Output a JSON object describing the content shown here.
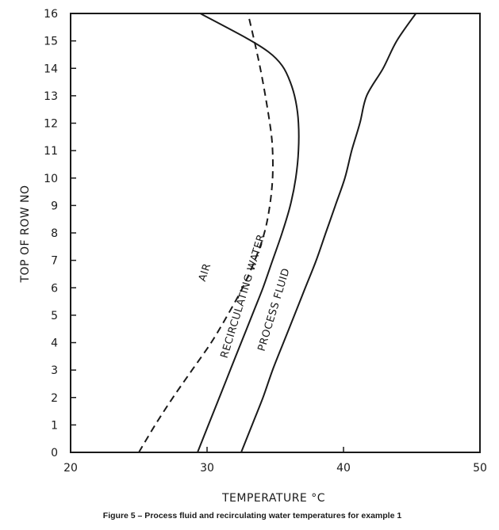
{
  "chart_data": {
    "type": "line",
    "title": "",
    "caption": "Figure 5 – Process fluid and recirculating water temperatures for example 1",
    "xlabel": "TEMPERATURE  °C",
    "ylabel": "TOP OF ROW NO",
    "xlim": [
      20,
      50
    ],
    "ylim": [
      0,
      16
    ],
    "xticks": [
      20,
      30,
      40,
      50
    ],
    "yticks": [
      0,
      1,
      2,
      3,
      4,
      5,
      6,
      7,
      8,
      9,
      10,
      11,
      12,
      13,
      14,
      15,
      16
    ],
    "grid": false,
    "series": [
      {
        "name": "AIR",
        "style": "dashed",
        "x": [
          25.0,
          26.2,
          27.5,
          28.9,
          30.3,
          31.5,
          32.6,
          33.5,
          34.2,
          34.6,
          34.8,
          34.8,
          34.6,
          33.9,
          33.0
        ],
        "y": [
          0,
          1,
          2,
          3,
          4,
          5,
          6,
          7,
          8,
          9,
          10,
          11,
          12,
          14,
          16
        ]
      },
      {
        "name": "RECIRCULATING WATER",
        "style": "solid",
        "x": [
          29.3,
          30.1,
          30.9,
          31.7,
          32.5,
          33.3,
          34.1,
          34.8,
          35.5,
          36.1,
          36.5,
          36.7,
          36.7,
          36.5,
          36.1,
          35.5,
          34.5,
          32.9,
          29.5
        ],
        "y": [
          0,
          1,
          2,
          3,
          4,
          5,
          6,
          7,
          8,
          9,
          10,
          11,
          12,
          12.8,
          13.5,
          14.1,
          14.6,
          15.1,
          16
        ]
      },
      {
        "name": "PROCESS FLUID",
        "style": "solid",
        "x": [
          32.5,
          33.3,
          34.1,
          34.8,
          35.6,
          36.4,
          37.2,
          38.0,
          38.7,
          39.4,
          40.1,
          40.6,
          41.2,
          41.7,
          42.9,
          43.9,
          45.3
        ],
        "y": [
          0,
          1,
          2,
          3,
          4,
          5,
          6,
          7,
          8,
          9,
          10,
          11,
          12,
          13,
          14,
          15,
          16
        ]
      }
    ],
    "colors": {
      "line": "#1a1a1a",
      "background": "#ffffff"
    }
  }
}
